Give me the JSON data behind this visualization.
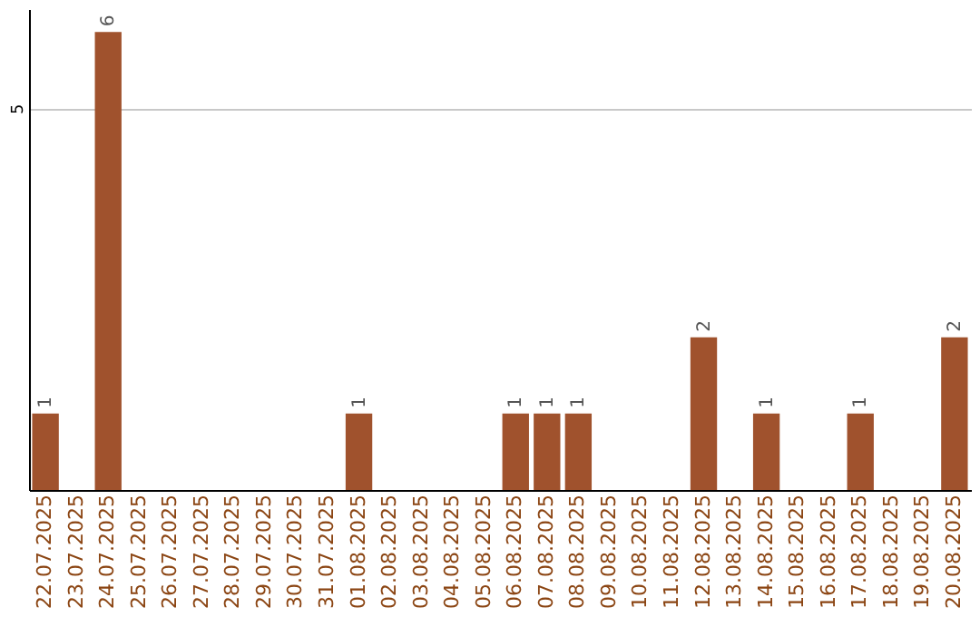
{
  "chart_data": {
    "type": "bar",
    "categories": [
      "22.07.2025",
      "23.07.2025",
      "24.07.2025",
      "25.07.2025",
      "26.07.2025",
      "27.07.2025",
      "28.07.2025",
      "29.07.2025",
      "30.07.2025",
      "31.07.2025",
      "01.08.2025",
      "02.08.2025",
      "03.08.2025",
      "04.08.2025",
      "05.08.2025",
      "06.08.2025",
      "07.08.2025",
      "08.08.2025",
      "09.08.2025",
      "10.08.2025",
      "11.08.2025",
      "12.08.2025",
      "13.08.2025",
      "14.08.2025",
      "15.08.2025",
      "16.08.2025",
      "17.08.2025",
      "18.08.2025",
      "19.08.2025",
      "20.08.2025"
    ],
    "values": [
      1,
      0,
      6,
      0,
      0,
      0,
      0,
      0,
      0,
      0,
      1,
      0,
      0,
      0,
      0,
      1,
      1,
      1,
      0,
      0,
      0,
      2,
      0,
      1,
      0,
      0,
      1,
      0,
      0,
      2
    ],
    "value_labels": [
      "1",
      null,
      "6",
      null,
      null,
      null,
      null,
      null,
      null,
      null,
      "1",
      null,
      null,
      null,
      null,
      "1",
      "1",
      "1",
      null,
      null,
      null,
      "2",
      null,
      "1",
      null,
      null,
      "1",
      null,
      null,
      "2"
    ],
    "color": "#a0522d",
    "ylim": [
      0,
      6.3
    ],
    "yticks": [
      5
    ],
    "grid": "y"
  }
}
